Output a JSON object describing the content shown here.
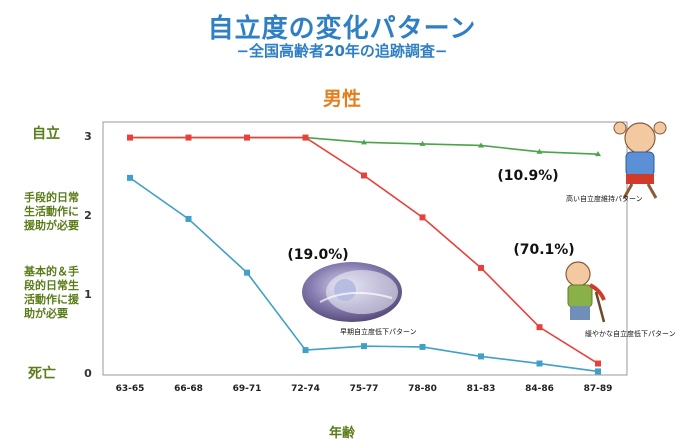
{
  "header": {
    "title": "自立度の変化パターン",
    "subtitle": "−全国高齢者20年の追跡調査−"
  },
  "y_level_labels": [
    {
      "value": 3,
      "lines": [
        "自立"
      ]
    },
    {
      "value": 2,
      "lines": [
        "手段的日常",
        "生活動作に",
        "援助が必要"
      ]
    },
    {
      "value": 1,
      "lines": [
        "基本的＆手",
        "段的日常生",
        "活動作に援",
        "助が必要"
      ]
    },
    {
      "value": 0,
      "lines": [
        "死亡"
      ]
    }
  ],
  "chart_data": {
    "type": "line",
    "title": "男性",
    "xlabel": "年齢",
    "ylabel": "",
    "ylim": [
      0,
      3
    ],
    "yticks": [
      0,
      1,
      2,
      3
    ],
    "categories": [
      "63-65",
      "66-68",
      "69-71",
      "72-74",
      "75-77",
      "78-80",
      "81-83",
      "84-86",
      "87-89"
    ],
    "grid": false,
    "series": [
      {
        "name": "高い自立度維持パターン",
        "color": "#4aa44a",
        "values": [
          2.98,
          2.98,
          2.98,
          2.98,
          2.92,
          2.9,
          2.88,
          2.8,
          2.77
        ],
        "percent": "(10.9%)"
      },
      {
        "name": "緩やかな自立度低下パターン",
        "color": "#e8413c",
        "values": [
          2.98,
          2.98,
          2.98,
          2.98,
          2.5,
          1.97,
          1.33,
          0.58,
          0.12
        ],
        "percent": "(70.1%)"
      },
      {
        "name": "早期自立度低下パターン",
        "color": "#3fa0c8",
        "values": [
          2.47,
          1.95,
          1.27,
          0.29,
          0.34,
          0.33,
          0.21,
          0.12,
          0.02
        ],
        "percent": "(19.0%)"
      }
    ]
  }
}
